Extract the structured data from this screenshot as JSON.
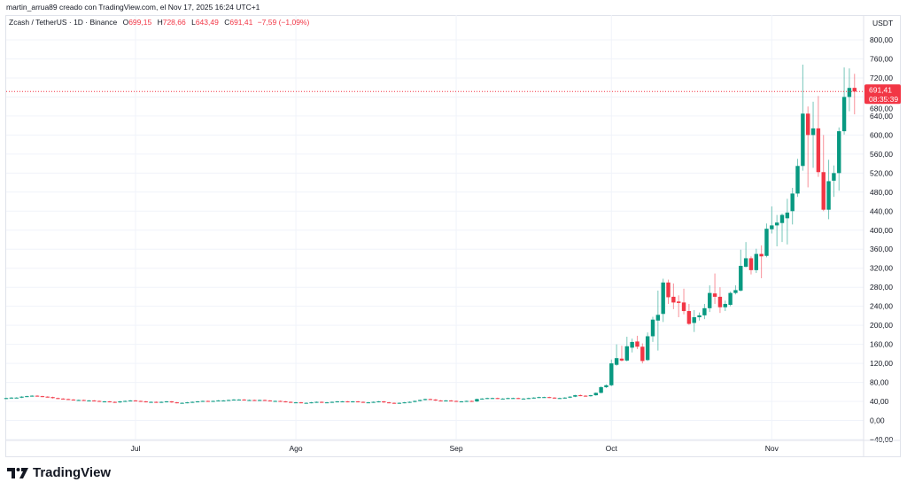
{
  "header": {
    "credit": "martin_arrua89 creado con TradingView.com, el Nov 17, 2025 16:24 UTC+1"
  },
  "legend": {
    "symbol": "Zcash / TetherUS · 1D · Binance",
    "o_label": "O",
    "o": "699,15",
    "h_label": "H",
    "h": "728,66",
    "l_label": "L",
    "l": "643,49",
    "c_label": "C",
    "c": "691,41",
    "change": "−7,59 (−1,09%)"
  },
  "price_axis": {
    "unit": "USDT",
    "last_price": "691,41",
    "countdown": "08:35:39"
  },
  "logo": {
    "text": "TradingView"
  },
  "colors": {
    "up": "#089981",
    "down": "#f23645",
    "grid": "#f0f3fa"
  },
  "chart_data": {
    "type": "candlestick",
    "interval": "1D",
    "ylim": [
      -40,
      800
    ],
    "y_ticks": [
      "800,00",
      "760,00",
      "720,00",
      "680,00",
      "640,00",
      "600,00",
      "560,00",
      "520,00",
      "480,00",
      "440,00",
      "400,00",
      "360,00",
      "320,00",
      "280,00",
      "240,00",
      "200,00",
      "160,00",
      "120,00",
      "80,00",
      "40,00",
      "0,00",
      "−40,00"
    ],
    "x_ticks": [
      {
        "label": "Jul",
        "date": "2025-07-01"
      },
      {
        "label": "Ago",
        "date": "2025-08-01"
      },
      {
        "label": "Sep",
        "date": "2025-09-01"
      },
      {
        "label": "Oct",
        "date": "2025-10-01"
      },
      {
        "label": "Nov",
        "date": "2025-11-01"
      }
    ],
    "grid": true,
    "last_price_line": 691.41,
    "candles_format": [
      "date",
      "open",
      "high",
      "low",
      "close"
    ],
    "candles": [
      [
        "2025-06-06",
        46,
        48,
        45,
        47
      ],
      [
        "2025-06-07",
        47,
        49,
        46,
        48
      ],
      [
        "2025-06-08",
        48,
        49,
        47,
        48
      ],
      [
        "2025-06-09",
        48,
        51,
        47,
        50
      ],
      [
        "2025-06-10",
        50,
        52,
        49,
        51
      ],
      [
        "2025-06-11",
        51,
        53,
        50,
        52
      ],
      [
        "2025-06-12",
        52,
        53,
        50,
        51
      ],
      [
        "2025-06-13",
        51,
        52,
        49,
        50
      ],
      [
        "2025-06-14",
        50,
        51,
        48,
        49
      ],
      [
        "2025-06-15",
        49,
        50,
        46,
        47
      ],
      [
        "2025-06-16",
        47,
        48,
        45,
        46
      ],
      [
        "2025-06-17",
        46,
        47,
        44,
        45
      ],
      [
        "2025-06-18",
        45,
        46,
        43,
        44
      ],
      [
        "2025-06-19",
        44,
        45,
        42,
        43
      ],
      [
        "2025-06-20",
        43,
        44,
        42,
        43
      ],
      [
        "2025-06-21",
        43,
        44,
        41,
        42
      ],
      [
        "2025-06-22",
        42,
        43,
        41,
        42
      ],
      [
        "2025-06-23",
        42,
        43,
        40,
        41
      ],
      [
        "2025-06-24",
        41,
        42,
        39,
        40
      ],
      [
        "2025-06-25",
        40,
        41,
        39,
        40
      ],
      [
        "2025-06-26",
        40,
        41,
        38,
        39
      ],
      [
        "2025-06-27",
        39,
        40,
        37,
        38
      ],
      [
        "2025-06-28",
        38,
        41,
        37,
        40
      ],
      [
        "2025-06-29",
        40,
        42,
        39,
        41
      ],
      [
        "2025-06-30",
        41,
        43,
        40,
        42
      ],
      [
        "2025-07-01",
        42,
        43,
        40,
        41
      ],
      [
        "2025-07-02",
        41,
        42,
        39,
        40
      ],
      [
        "2025-07-03",
        40,
        41,
        38,
        39
      ],
      [
        "2025-07-04",
        39,
        40,
        38,
        39
      ],
      [
        "2025-07-05",
        39,
        40,
        37,
        38
      ],
      [
        "2025-07-06",
        38,
        40,
        37,
        39
      ],
      [
        "2025-07-07",
        39,
        41,
        38,
        40
      ],
      [
        "2025-07-08",
        40,
        41,
        37,
        38
      ],
      [
        "2025-07-09",
        38,
        39,
        36,
        37
      ],
      [
        "2025-07-10",
        37,
        38,
        36,
        37
      ],
      [
        "2025-07-11",
        37,
        39,
        36,
        38
      ],
      [
        "2025-07-12",
        38,
        40,
        37,
        39
      ],
      [
        "2025-07-13",
        39,
        41,
        38,
        40
      ],
      [
        "2025-07-14",
        40,
        42,
        39,
        41
      ],
      [
        "2025-07-15",
        41,
        42,
        39,
        40
      ],
      [
        "2025-07-16",
        40,
        42,
        39,
        41
      ],
      [
        "2025-07-17",
        41,
        43,
        40,
        42
      ],
      [
        "2025-07-18",
        42,
        43,
        41,
        42
      ],
      [
        "2025-07-19",
        42,
        44,
        41,
        43
      ],
      [
        "2025-07-20",
        43,
        45,
        42,
        44
      ],
      [
        "2025-07-21",
        44,
        45,
        43,
        44
      ],
      [
        "2025-07-22",
        44,
        45,
        42,
        43
      ],
      [
        "2025-07-23",
        43,
        44,
        42,
        43
      ],
      [
        "2025-07-24",
        43,
        44,
        41,
        42
      ],
      [
        "2025-07-25",
        42,
        44,
        41,
        43
      ],
      [
        "2025-07-26",
        43,
        44,
        41,
        42
      ],
      [
        "2025-07-27",
        42,
        43,
        40,
        41
      ],
      [
        "2025-07-28",
        41,
        42,
        40,
        41
      ],
      [
        "2025-07-29",
        41,
        42,
        39,
        40
      ],
      [
        "2025-07-30",
        40,
        41,
        38,
        39
      ],
      [
        "2025-07-31",
        39,
        40,
        37,
        38
      ],
      [
        "2025-08-01",
        38,
        39,
        37,
        38
      ],
      [
        "2025-08-02",
        38,
        39,
        36,
        37
      ],
      [
        "2025-08-03",
        37,
        38,
        36,
        37
      ],
      [
        "2025-08-04",
        37,
        39,
        36,
        38
      ],
      [
        "2025-08-05",
        38,
        40,
        37,
        39
      ],
      [
        "2025-08-06",
        39,
        40,
        37,
        38
      ],
      [
        "2025-08-07",
        38,
        39,
        37,
        38
      ],
      [
        "2025-08-08",
        38,
        40,
        37,
        39
      ],
      [
        "2025-08-09",
        39,
        41,
        38,
        40
      ],
      [
        "2025-08-10",
        40,
        41,
        39,
        40
      ],
      [
        "2025-08-11",
        40,
        41,
        38,
        39
      ],
      [
        "2025-08-12",
        39,
        41,
        38,
        40
      ],
      [
        "2025-08-13",
        40,
        41,
        38,
        39
      ],
      [
        "2025-08-14",
        39,
        40,
        37,
        38
      ],
      [
        "2025-08-15",
        38,
        39,
        37,
        38
      ],
      [
        "2025-08-16",
        38,
        40,
        37,
        39
      ],
      [
        "2025-08-17",
        39,
        41,
        38,
        40
      ],
      [
        "2025-08-18",
        40,
        41,
        37,
        38
      ],
      [
        "2025-08-19",
        38,
        39,
        36,
        37
      ],
      [
        "2025-08-20",
        37,
        38,
        35,
        36
      ],
      [
        "2025-08-21",
        36,
        38,
        35,
        37
      ],
      [
        "2025-08-22",
        37,
        39,
        36,
        38
      ],
      [
        "2025-08-23",
        38,
        40,
        37,
        39
      ],
      [
        "2025-08-24",
        39,
        42,
        38,
        41
      ],
      [
        "2025-08-25",
        41,
        44,
        40,
        43
      ],
      [
        "2025-08-26",
        43,
        46,
        42,
        45
      ],
      [
        "2025-08-27",
        45,
        46,
        43,
        44
      ],
      [
        "2025-08-28",
        44,
        45,
        41,
        42
      ],
      [
        "2025-08-29",
        42,
        43,
        40,
        41
      ],
      [
        "2025-08-30",
        41,
        43,
        40,
        42
      ],
      [
        "2025-08-31",
        42,
        43,
        40,
        41
      ],
      [
        "2025-09-01",
        41,
        42,
        39,
        40
      ],
      [
        "2025-09-02",
        40,
        41,
        39,
        40
      ],
      [
        "2025-09-03",
        40,
        42,
        39,
        41
      ],
      [
        "2025-09-04",
        41,
        42,
        39,
        40
      ],
      [
        "2025-09-05",
        40,
        46,
        39,
        45
      ],
      [
        "2025-09-06",
        45,
        47,
        44,
        46
      ],
      [
        "2025-09-07",
        46,
        48,
        45,
        47
      ],
      [
        "2025-09-08",
        47,
        48,
        46,
        47
      ],
      [
        "2025-09-09",
        47,
        48,
        45,
        46
      ],
      [
        "2025-09-10",
        46,
        47,
        45,
        46
      ],
      [
        "2025-09-11",
        46,
        48,
        45,
        47
      ],
      [
        "2025-09-12",
        47,
        48,
        46,
        47
      ],
      [
        "2025-09-13",
        47,
        48,
        45,
        46
      ],
      [
        "2025-09-14",
        46,
        47,
        45,
        46
      ],
      [
        "2025-09-15",
        46,
        48,
        45,
        47
      ],
      [
        "2025-09-16",
        47,
        49,
        46,
        48
      ],
      [
        "2025-09-17",
        48,
        50,
        47,
        49
      ],
      [
        "2025-09-18",
        49,
        50,
        48,
        49
      ],
      [
        "2025-09-19",
        49,
        50,
        47,
        48
      ],
      [
        "2025-09-20",
        48,
        49,
        46,
        47
      ],
      [
        "2025-09-21",
        47,
        48,
        46,
        47
      ],
      [
        "2025-09-22",
        47,
        49,
        46,
        48
      ],
      [
        "2025-09-23",
        48,
        51,
        47,
        50
      ],
      [
        "2025-09-24",
        50,
        54,
        49,
        53
      ],
      [
        "2025-09-25",
        53,
        55,
        51,
        52
      ],
      [
        "2025-09-26",
        52,
        53,
        50,
        51
      ],
      [
        "2025-09-27",
        51,
        54,
        50,
        53
      ],
      [
        "2025-09-28",
        53,
        59,
        52,
        58
      ],
      [
        "2025-09-29",
        58,
        72,
        57,
        70
      ],
      [
        "2025-09-30",
        70,
        76,
        68,
        74
      ],
      [
        "2025-10-01",
        74,
        128,
        72,
        120
      ],
      [
        "2025-10-02",
        117,
        160,
        115,
        131
      ],
      [
        "2025-10-03",
        130,
        157,
        124,
        126
      ],
      [
        "2025-10-04",
        126,
        176,
        124,
        156
      ],
      [
        "2025-10-05",
        153,
        172,
        143,
        165
      ],
      [
        "2025-10-06",
        166,
        178,
        150,
        155
      ],
      [
        "2025-10-07",
        155,
        162,
        120,
        125
      ],
      [
        "2025-10-08",
        127,
        185,
        125,
        177
      ],
      [
        "2025-10-09",
        177,
        218,
        165,
        212
      ],
      [
        "2025-10-10",
        210,
        273,
        147,
        222
      ],
      [
        "2025-10-11",
        224,
        298,
        207,
        290
      ],
      [
        "2025-10-12",
        290,
        296,
        245,
        259
      ],
      [
        "2025-10-13",
        260,
        288,
        234,
        248
      ],
      [
        "2025-10-14",
        250,
        263,
        217,
        247
      ],
      [
        "2025-10-15",
        248,
        277,
        223,
        230
      ],
      [
        "2025-10-16",
        230,
        245,
        201,
        203
      ],
      [
        "2025-10-17",
        205,
        232,
        186,
        217
      ],
      [
        "2025-10-18",
        217,
        227,
        210,
        221
      ],
      [
        "2025-10-19",
        221,
        245,
        213,
        236
      ],
      [
        "2025-10-20",
        236,
        284,
        228,
        268
      ],
      [
        "2025-10-21",
        267,
        309,
        245,
        260
      ],
      [
        "2025-10-22",
        260,
        280,
        226,
        238
      ],
      [
        "2025-10-23",
        238,
        252,
        230,
        245
      ],
      [
        "2025-10-24",
        243,
        271,
        240,
        268
      ],
      [
        "2025-10-25",
        268,
        284,
        265,
        274
      ],
      [
        "2025-10-26",
        273,
        359,
        271,
        325
      ],
      [
        "2025-10-27",
        323,
        375,
        322,
        341
      ],
      [
        "2025-10-28",
        341,
        345,
        307,
        316
      ],
      [
        "2025-10-29",
        316,
        361,
        310,
        350
      ],
      [
        "2025-10-30",
        350,
        368,
        299,
        345
      ],
      [
        "2025-10-31",
        346,
        414,
        343,
        403
      ],
      [
        "2025-11-01",
        402,
        450,
        393,
        410
      ],
      [
        "2025-11-02",
        410,
        432,
        366,
        416
      ],
      [
        "2025-11-03",
        415,
        435,
        375,
        432
      ],
      [
        "2025-11-04",
        425,
        466,
        370,
        437
      ],
      [
        "2025-11-05",
        440,
        489,
        412,
        477
      ],
      [
        "2025-11-06",
        477,
        550,
        470,
        535
      ],
      [
        "2025-11-07",
        535,
        748,
        525,
        645
      ],
      [
        "2025-11-08",
        645,
        660,
        490,
        600
      ],
      [
        "2025-11-09",
        600,
        670,
        531,
        614
      ],
      [
        "2025-11-10",
        614,
        682,
        512,
        522
      ],
      [
        "2025-11-11",
        522,
        600,
        440,
        443
      ],
      [
        "2025-11-12",
        443,
        548,
        423,
        503
      ],
      [
        "2025-11-13",
        504,
        536,
        470,
        520
      ],
      [
        "2025-11-14",
        520,
        616,
        483,
        608
      ],
      [
        "2025-11-15",
        608,
        742,
        601,
        680
      ],
      [
        "2025-11-16",
        680,
        740,
        650,
        699
      ],
      [
        "2025-11-17",
        699.15,
        728.66,
        643.49,
        691.41
      ]
    ]
  }
}
